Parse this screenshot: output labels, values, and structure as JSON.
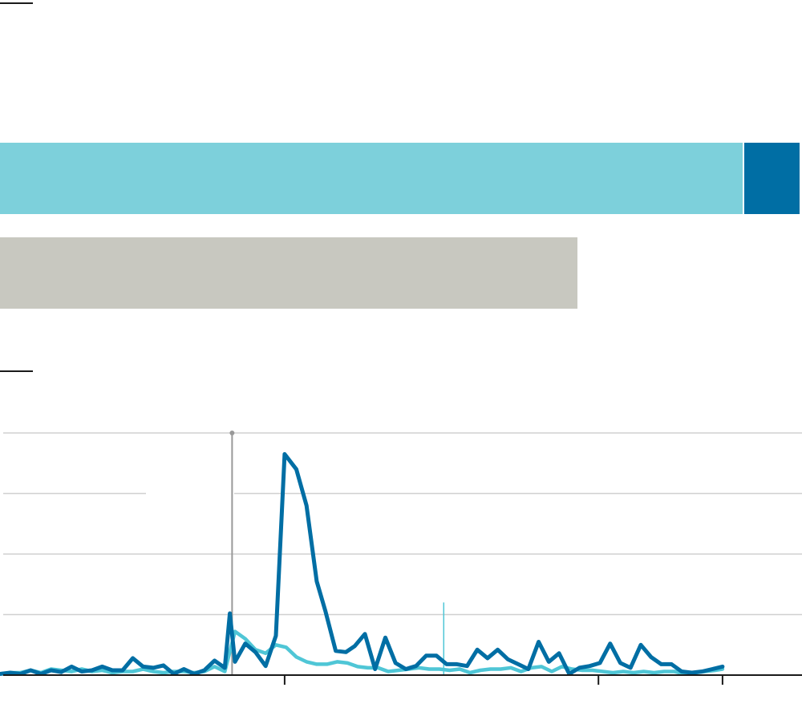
{
  "colors": {
    "light_blue": "#7dd0db",
    "dark_blue": "#006ea4",
    "grey": "#c8c8c0",
    "line_dark": "#006ea4",
    "line_light": "#4fc6d6",
    "grid": "#d0d0d0",
    "axis": "#1a1a1a",
    "marker": "#999999"
  },
  "chart_data": [
    {
      "type": "bar",
      "stacked": true,
      "categories": [
        "",
        ""
      ],
      "series": [
        {
          "values": [
            1,
            0.778
          ]
        },
        {
          "values": [
            0.074,
            0
          ]
        }
      ]
    },
    {
      "type": "line",
      "grid": true,
      "ylim": [
        0,
        4
      ],
      "xlim": [
        0,
        100
      ],
      "y_gridlines": [
        1,
        2,
        3,
        4
      ],
      "x_ticks": [
        39,
        82,
        99
      ],
      "reference_lines": [
        {
          "x": 31.8,
          "y_top": 4
        },
        {
          "x": 60.8,
          "y_top": 1.2
        }
      ],
      "series": [
        {
          "x": [
            0,
            1.4,
            2.8,
            4.2,
            5.6,
            7,
            8.4,
            9.8,
            11.2,
            12.6,
            14,
            15.4,
            16.8,
            18.2,
            19.6,
            21,
            22.4,
            23.8,
            25.2,
            26.6,
            28,
            29.4,
            30.8,
            31.5,
            32.2,
            33.6,
            35,
            36.4,
            37.8,
            39,
            40.6,
            42,
            43.4,
            44.6,
            46,
            47.4,
            48.6,
            50,
            51.4,
            52.8,
            54.2,
            55.6,
            57,
            58.4,
            59.8,
            61.2,
            62.6,
            64,
            65.4,
            66.8,
            68.2,
            69.6,
            71,
            72.4,
            73.8,
            75.2,
            76.6,
            78,
            79.4,
            80.8,
            82.2,
            83.6,
            85,
            86.4,
            87.8,
            89.2,
            90.6,
            92,
            93.4,
            94.8,
            96.2,
            97.6,
            99
          ],
          "values": [
            0.02,
            0.04,
            0.02,
            0.08,
            0.02,
            0.08,
            0.05,
            0.14,
            0.06,
            0.08,
            0.14,
            0.08,
            0.08,
            0.28,
            0.14,
            0.12,
            0.16,
            0.02,
            0.1,
            0.02,
            0.08,
            0.24,
            0.12,
            1.02,
            0.22,
            0.52,
            0.38,
            0.15,
            0.65,
            3.65,
            3.4,
            2.8,
            1.55,
            1.05,
            0.4,
            0.38,
            0.48,
            0.68,
            0.1,
            0.62,
            0.2,
            0.1,
            0.15,
            0.32,
            0.32,
            0.18,
            0.18,
            0.15,
            0.42,
            0.28,
            0.42,
            0.26,
            0.18,
            0.1,
            0.55,
            0.22,
            0.36,
            0.02,
            0.12,
            0.15,
            0.2,
            0.52,
            0.2,
            0.12,
            0.5,
            0.3,
            0.18,
            0.18,
            0.06,
            0.04,
            0.06,
            0.1,
            0.14
          ]
        },
        {
          "x": [
            0,
            1.4,
            2.8,
            4.2,
            5.6,
            7,
            8.4,
            9.8,
            11.2,
            12.6,
            14,
            15.4,
            16.8,
            18.2,
            19.6,
            21,
            22.4,
            23.8,
            25.2,
            26.6,
            28,
            29.4,
            30.8,
            32.2,
            33.6,
            35,
            36.4,
            37.8,
            39.2,
            40.6,
            42,
            43.4,
            44.8,
            46.2,
            47.6,
            49,
            50.4,
            51.8,
            53.2,
            54.6,
            56,
            57.4,
            58.8,
            60.2,
            61.6,
            63,
            64.4,
            65.8,
            67.2,
            68.6,
            70,
            71.4,
            72.8,
            74.2,
            75.6,
            77,
            78.4,
            79.8,
            81.2,
            82.6,
            84,
            85.4,
            86.8,
            88.2,
            89.6,
            91,
            92.4,
            93.8,
            95.2,
            96.6,
            98,
            99
          ],
          "values": [
            0.02,
            0.04,
            0.04,
            0.08,
            0.04,
            0.1,
            0.08,
            0.06,
            0.1,
            0.06,
            0.08,
            0.04,
            0.06,
            0.06,
            0.1,
            0.06,
            0.04,
            0.06,
            0.06,
            0.04,
            0.06,
            0.14,
            0.06,
            0.72,
            0.6,
            0.42,
            0.36,
            0.5,
            0.46,
            0.3,
            0.22,
            0.18,
            0.18,
            0.22,
            0.2,
            0.14,
            0.12,
            0.12,
            0.06,
            0.08,
            0.1,
            0.12,
            0.1,
            0.1,
            0.08,
            0.1,
            0.04,
            0.08,
            0.1,
            0.1,
            0.12,
            0.06,
            0.12,
            0.14,
            0.06,
            0.14,
            0.1,
            0.08,
            0.08,
            0.06,
            0.04,
            0.06,
            0.04,
            0.06,
            0.04,
            0.06,
            0.06,
            0.02,
            0.04,
            0.06,
            0.08,
            0.1
          ]
        }
      ]
    }
  ]
}
